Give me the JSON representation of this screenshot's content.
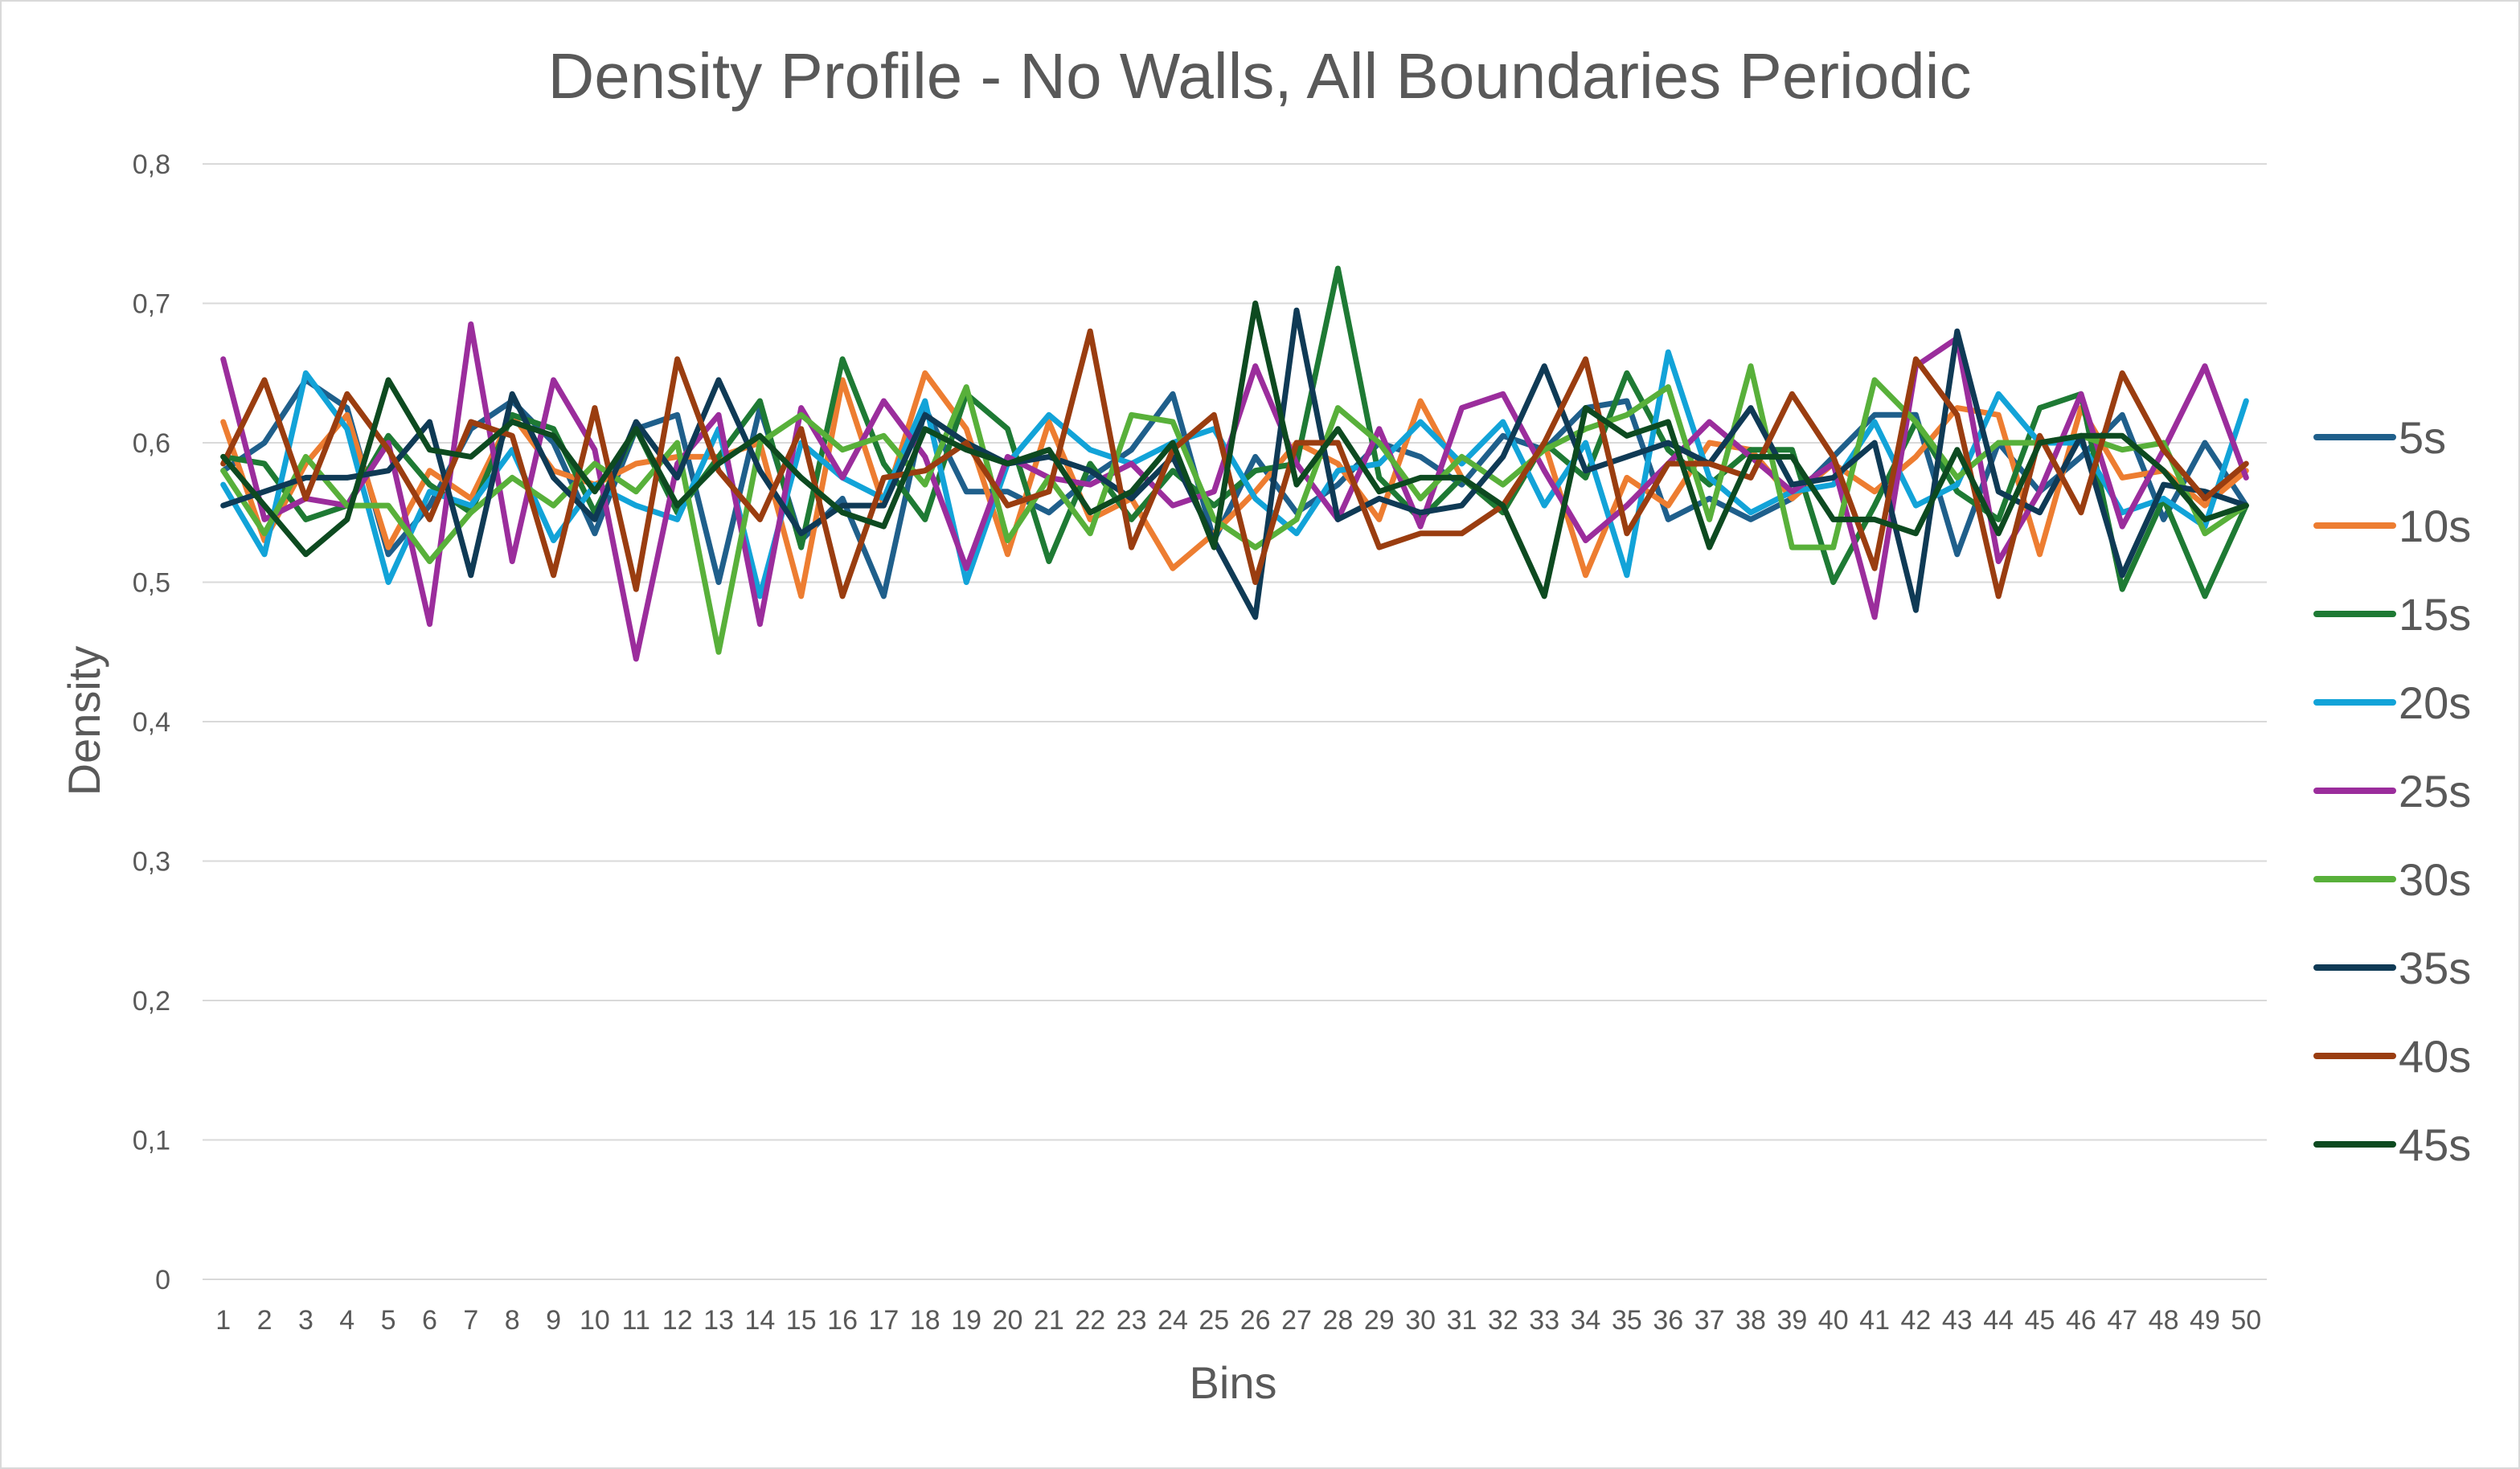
{
  "chart_data": {
    "type": "line",
    "title": "Density Profile - No Walls, All Boundaries Periodic",
    "xlabel": "Bins",
    "ylabel": "Density",
    "ylim": [
      0,
      0.8
    ],
    "yticks": [
      "0",
      "0,1",
      "0,2",
      "0,3",
      "0,4",
      "0,5",
      "0,6",
      "0,7",
      "0,8"
    ],
    "ytick_values": [
      0,
      0.1,
      0.2,
      0.3,
      0.4,
      0.5,
      0.6,
      0.7,
      0.8
    ],
    "grid": true,
    "legend_position": "right",
    "x": [
      1,
      2,
      3,
      4,
      5,
      6,
      7,
      8,
      9,
      10,
      11,
      12,
      13,
      14,
      15,
      16,
      17,
      18,
      19,
      20,
      21,
      22,
      23,
      24,
      25,
      26,
      27,
      28,
      29,
      30,
      31,
      32,
      33,
      34,
      35,
      36,
      37,
      38,
      39,
      40,
      41,
      42,
      43,
      44,
      45,
      46,
      47,
      48,
      49,
      50
    ],
    "series": [
      {
        "name": "5s",
        "color": "#1f5f8b",
        "values": [
          0.58,
          0.6,
          0.645,
          0.625,
          0.52,
          0.555,
          0.61,
          0.63,
          0.6,
          0.535,
          0.61,
          0.62,
          0.5,
          0.625,
          0.53,
          0.56,
          0.49,
          0.625,
          0.565,
          0.565,
          0.55,
          0.575,
          0.595,
          0.635,
          0.53,
          0.59,
          0.55,
          0.57,
          0.6,
          0.59,
          0.57,
          0.605,
          0.595,
          0.625,
          0.63,
          0.545,
          0.56,
          0.545,
          0.56,
          0.59,
          0.62,
          0.62,
          0.52,
          0.6,
          0.565,
          0.59,
          0.62,
          0.545,
          0.6,
          0.555
        ]
      },
      {
        "name": "10s",
        "color": "#ed7d31",
        "values": [
          0.615,
          0.53,
          0.585,
          0.62,
          0.525,
          0.58,
          0.56,
          0.62,
          0.58,
          0.57,
          0.585,
          0.59,
          0.59,
          0.6,
          0.49,
          0.645,
          0.555,
          0.65,
          0.61,
          0.52,
          0.615,
          0.545,
          0.56,
          0.51,
          0.535,
          0.565,
          0.6,
          0.585,
          0.545,
          0.63,
          0.575,
          0.55,
          0.6,
          0.505,
          0.575,
          0.555,
          0.6,
          0.595,
          0.56,
          0.585,
          0.565,
          0.59,
          0.625,
          0.62,
          0.52,
          0.625,
          0.575,
          0.58,
          0.555,
          0.58
        ]
      },
      {
        "name": "15s",
        "color": "#1e7a34",
        "values": [
          0.59,
          0.585,
          0.545,
          0.555,
          0.605,
          0.57,
          0.55,
          0.62,
          0.61,
          0.55,
          0.61,
          0.55,
          0.59,
          0.63,
          0.525,
          0.66,
          0.585,
          0.545,
          0.635,
          0.61,
          0.515,
          0.585,
          0.545,
          0.58,
          0.555,
          0.58,
          0.585,
          0.725,
          0.575,
          0.545,
          0.575,
          0.55,
          0.6,
          0.575,
          0.65,
          0.595,
          0.57,
          0.595,
          0.595,
          0.5,
          0.555,
          0.615,
          0.565,
          0.545,
          0.625,
          0.635,
          0.495,
          0.56,
          0.49,
          0.555
        ]
      },
      {
        "name": "20s",
        "color": "#12a3d8",
        "values": [
          0.57,
          0.52,
          0.65,
          0.61,
          0.5,
          0.565,
          0.555,
          0.595,
          0.53,
          0.57,
          0.555,
          0.545,
          0.61,
          0.49,
          0.6,
          0.575,
          0.56,
          0.63,
          0.5,
          0.585,
          0.62,
          0.595,
          0.585,
          0.6,
          0.61,
          0.56,
          0.535,
          0.58,
          0.585,
          0.615,
          0.585,
          0.615,
          0.555,
          0.6,
          0.505,
          0.665,
          0.575,
          0.55,
          0.565,
          0.57,
          0.615,
          0.555,
          0.57,
          0.635,
          0.6,
          0.6,
          0.55,
          0.56,
          0.54,
          0.63
        ]
      },
      {
        "name": "25s",
        "color": "#9b2d9c",
        "values": [
          0.66,
          0.545,
          0.56,
          0.555,
          0.6,
          0.47,
          0.685,
          0.515,
          0.645,
          0.595,
          0.445,
          0.585,
          0.62,
          0.47,
          0.625,
          0.575,
          0.63,
          0.59,
          0.51,
          0.59,
          0.575,
          0.57,
          0.585,
          0.555,
          0.565,
          0.655,
          0.585,
          0.545,
          0.61,
          0.54,
          0.625,
          0.635,
          0.58,
          0.53,
          0.555,
          0.585,
          0.615,
          0.59,
          0.565,
          0.585,
          0.475,
          0.655,
          0.675,
          0.515,
          0.565,
          0.635,
          0.54,
          0.595,
          0.655,
          0.575
        ]
      },
      {
        "name": "30s",
        "color": "#58b03a",
        "values": [
          0.58,
          0.535,
          0.59,
          0.555,
          0.555,
          0.515,
          0.55,
          0.575,
          0.555,
          0.585,
          0.565,
          0.6,
          0.45,
          0.6,
          0.62,
          0.595,
          0.605,
          0.57,
          0.64,
          0.53,
          0.575,
          0.535,
          0.62,
          0.615,
          0.545,
          0.525,
          0.545,
          0.625,
          0.6,
          0.56,
          0.59,
          0.57,
          0.595,
          0.61,
          0.62,
          0.64,
          0.545,
          0.655,
          0.525,
          0.525,
          0.645,
          0.615,
          0.575,
          0.6,
          0.6,
          0.605,
          0.595,
          0.6,
          0.535,
          0.555
        ]
      },
      {
        "name": "35s",
        "color": "#0f3a55",
        "values": [
          0.555,
          0.565,
          0.575,
          0.575,
          0.58,
          0.615,
          0.505,
          0.635,
          0.575,
          0.545,
          0.615,
          0.575,
          0.645,
          0.58,
          0.535,
          0.555,
          0.555,
          0.62,
          0.6,
          0.585,
          0.59,
          0.58,
          0.56,
          0.59,
          0.53,
          0.475,
          0.695,
          0.545,
          0.56,
          0.55,
          0.555,
          0.59,
          0.655,
          0.58,
          0.59,
          0.6,
          0.585,
          0.625,
          0.57,
          0.575,
          0.6,
          0.48,
          0.68,
          0.565,
          0.55,
          0.605,
          0.505,
          0.57,
          0.565,
          0.555
        ]
      },
      {
        "name": "40s",
        "color": "#9a3d10",
        "values": [
          0.585,
          0.645,
          0.56,
          0.635,
          0.595,
          0.545,
          0.615,
          0.605,
          0.505,
          0.625,
          0.495,
          0.66,
          0.58,
          0.545,
          0.61,
          0.49,
          0.575,
          0.58,
          0.6,
          0.555,
          0.565,
          0.68,
          0.525,
          0.595,
          0.62,
          0.5,
          0.6,
          0.6,
          0.525,
          0.535,
          0.535,
          0.555,
          0.6,
          0.66,
          0.535,
          0.585,
          0.585,
          0.575,
          0.635,
          0.59,
          0.51,
          0.66,
          0.62,
          0.49,
          0.605,
          0.55,
          0.65,
          0.595,
          0.56,
          0.585
        ]
      },
      {
        "name": "45s",
        "color": "#0d4a20",
        "values": [
          0.59,
          0.555,
          0.52,
          0.545,
          0.645,
          0.595,
          0.59,
          0.615,
          0.605,
          0.565,
          0.61,
          0.555,
          0.585,
          0.605,
          0.575,
          0.55,
          0.54,
          0.61,
          0.595,
          0.585,
          0.595,
          0.55,
          0.565,
          0.6,
          0.525,
          0.7,
          0.57,
          0.61,
          0.565,
          0.575,
          0.575,
          0.555,
          0.49,
          0.625,
          0.605,
          0.615,
          0.525,
          0.59,
          0.59,
          0.545,
          0.545,
          0.535,
          0.595,
          0.535,
          0.6,
          0.605,
          0.605,
          0.58,
          0.545,
          0.555
        ]
      }
    ]
  }
}
